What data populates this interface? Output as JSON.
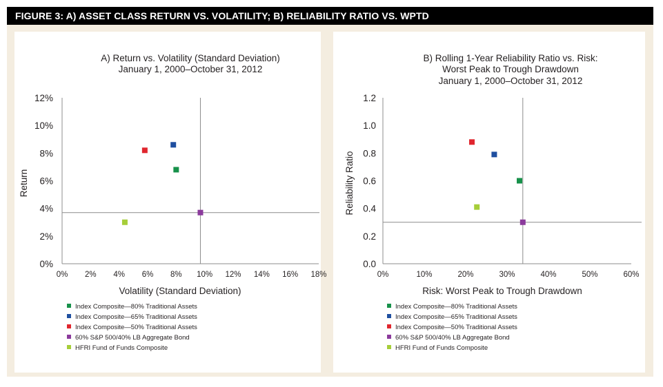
{
  "figure": {
    "title": "FIGURE 3: A) ASSET CLASS RETURN VS. VOLATILITY; B) RELIABILITY RATIO VS. WPTD",
    "title_bg": "#000000",
    "background": "#f4ede0"
  },
  "legend": [
    {
      "label": "Index Composite—80% Traditional Assets",
      "color": "#17914a"
    },
    {
      "label": "Index Composite—65% Traditional Assets",
      "color": "#1f4fa0"
    },
    {
      "label": "Index Composite—50% Traditional Assets",
      "color": "#e0262e"
    },
    {
      "label": "60% S&P 500/40% LB Aggregate Bond",
      "color": "#8b3a9c"
    },
    {
      "label": "HFRI Fund of Funds Composite",
      "color": "#a6ce39"
    }
  ],
  "chart_data": [
    {
      "type": "scatter",
      "title": "A) Return vs. Volatility (Standard Deviation)",
      "subtitle": "January 1, 2000–October 31, 2012",
      "xlabel": "Volatility (Standard Deviation)",
      "ylabel": "Return",
      "xlim": [
        0,
        18
      ],
      "ylim": [
        0,
        12
      ],
      "xticks": [
        "0%",
        "2%",
        "4%",
        "6%",
        "8%",
        "10%",
        "12%",
        "14%",
        "16%",
        "18%"
      ],
      "yticks": [
        "0%",
        "2%",
        "4%",
        "6%",
        "8%",
        "10%",
        "12%"
      ],
      "grid": false,
      "reference_lines": {
        "x": 9.7,
        "y": 3.7
      },
      "legend_position": "bottom",
      "series": [
        {
          "name": "Index Composite—80% Traditional Assets",
          "color": "#17914a",
          "x": [
            8.0
          ],
          "y": [
            6.8
          ]
        },
        {
          "name": "Index Composite—65% Traditional Assets",
          "color": "#1f4fa0",
          "x": [
            7.8
          ],
          "y": [
            8.6
          ]
        },
        {
          "name": "Index Composite—50% Traditional Assets",
          "color": "#e0262e",
          "x": [
            5.8
          ],
          "y": [
            8.2
          ]
        },
        {
          "name": "60% S&P 500/40% LB Aggregate Bond",
          "color": "#8b3a9c",
          "x": [
            9.7
          ],
          "y": [
            3.7
          ]
        },
        {
          "name": "HFRI Fund of Funds Composite",
          "color": "#a6ce39",
          "x": [
            4.4
          ],
          "y": [
            3.0
          ]
        }
      ]
    },
    {
      "type": "scatter",
      "title": "B) Rolling 1-Year Reliability Ratio vs. Risk:",
      "subtitle": "Worst Peak to Trough Drawdown",
      "subtitle2": "January 1, 2000–October 31, 2012",
      "xlabel": "Risk: Worst Peak to Trough Drawdown",
      "ylabel": "Reliability Ratio",
      "xlim": [
        0,
        60
      ],
      "ylim": [
        0,
        1.2
      ],
      "xticks": [
        "0%",
        "10%",
        "20%",
        "30%",
        "40%",
        "50%",
        "60%"
      ],
      "yticks": [
        "0.0",
        "0.2",
        "0.4",
        "0.6",
        "0.8",
        "1.0",
        "1.2"
      ],
      "grid": false,
      "reference_lines": {
        "x": 33.8,
        "y": 0.3
      },
      "legend_position": "bottom",
      "series": [
        {
          "name": "Index Composite—80% Traditional Assets",
          "color": "#17914a",
          "x": [
            33.0
          ],
          "y": [
            0.6
          ]
        },
        {
          "name": "Index Composite—65% Traditional Assets",
          "color": "#1f4fa0",
          "x": [
            26.9
          ],
          "y": [
            0.79
          ]
        },
        {
          "name": "Index Composite—50% Traditional Assets",
          "color": "#e0262e",
          "x": [
            21.5
          ],
          "y": [
            0.88
          ]
        },
        {
          "name": "60% S&P 500/40% LB Aggregate Bond",
          "color": "#8b3a9c",
          "x": [
            33.8
          ],
          "y": [
            0.3
          ]
        },
        {
          "name": "HFRI Fund of Funds Composite",
          "color": "#a6ce39",
          "x": [
            22.7
          ],
          "y": [
            0.41
          ]
        }
      ]
    }
  ]
}
